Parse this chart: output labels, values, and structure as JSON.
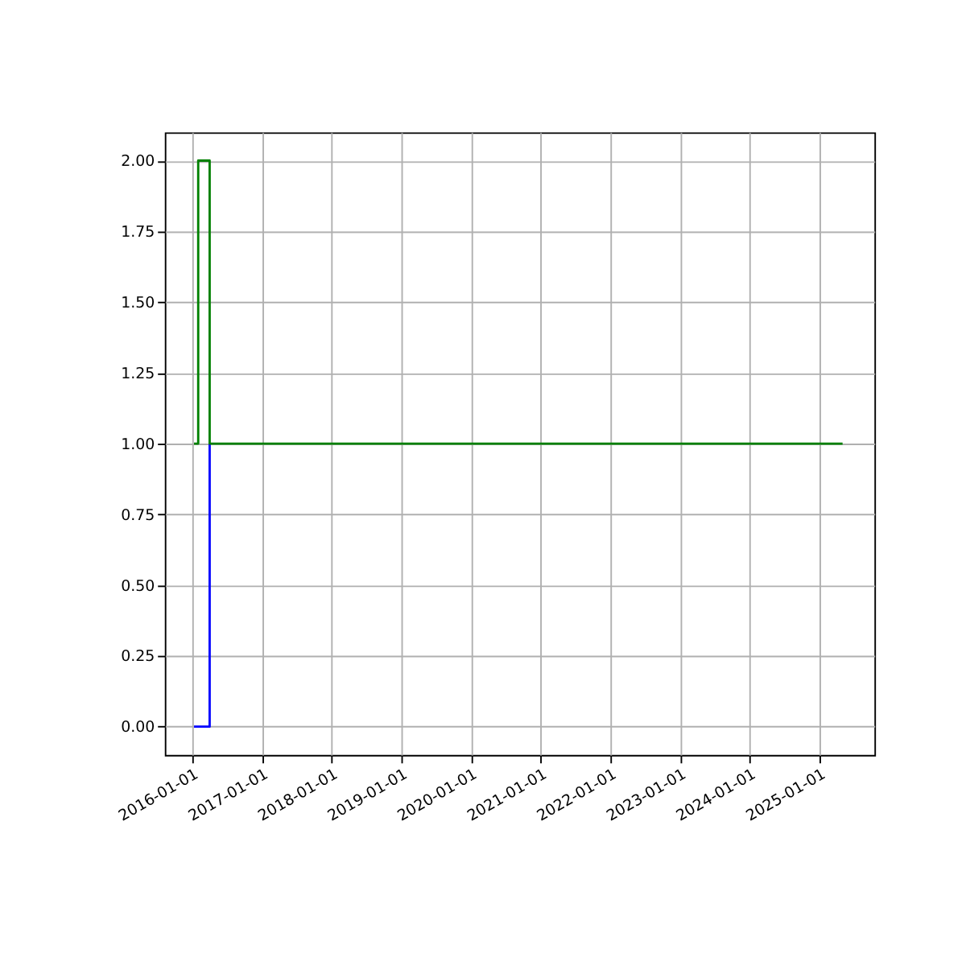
{
  "chart_data": {
    "type": "step",
    "series": [
      {
        "color": "#0000ff",
        "x": [
          "2016-01-10",
          "2016-04-01"
        ],
        "values": [
          0,
          1
        ]
      },
      {
        "color": "#008000",
        "x": [
          "2016-01-10",
          "2016-02-01",
          "2016-04-01",
          "2025-05-01"
        ],
        "values": [
          1,
          2,
          1,
          1
        ]
      }
    ],
    "xlim": [
      "2015-08-10",
      "2025-10-15"
    ],
    "xticks": [
      "2016-01-01",
      "2017-01-01",
      "2018-01-01",
      "2019-01-01",
      "2020-01-01",
      "2021-01-01",
      "2022-01-01",
      "2023-01-01",
      "2024-01-01",
      "2025-01-01"
    ],
    "ylim": [
      -0.1,
      2.1
    ],
    "yticks": [
      {
        "value": 0,
        "label": "0.00"
      },
      {
        "value": 0.25,
        "label": "0.25"
      },
      {
        "value": 0.5,
        "label": "0.50"
      },
      {
        "value": 0.75,
        "label": "0.75"
      },
      {
        "value": 1,
        "label": "1.00"
      },
      {
        "value": 1.25,
        "label": "1.25"
      },
      {
        "value": 1.5,
        "label": "1.50"
      },
      {
        "value": 1.75,
        "label": "1.75"
      },
      {
        "value": 2,
        "label": "2.00"
      }
    ],
    "grid": true
  }
}
